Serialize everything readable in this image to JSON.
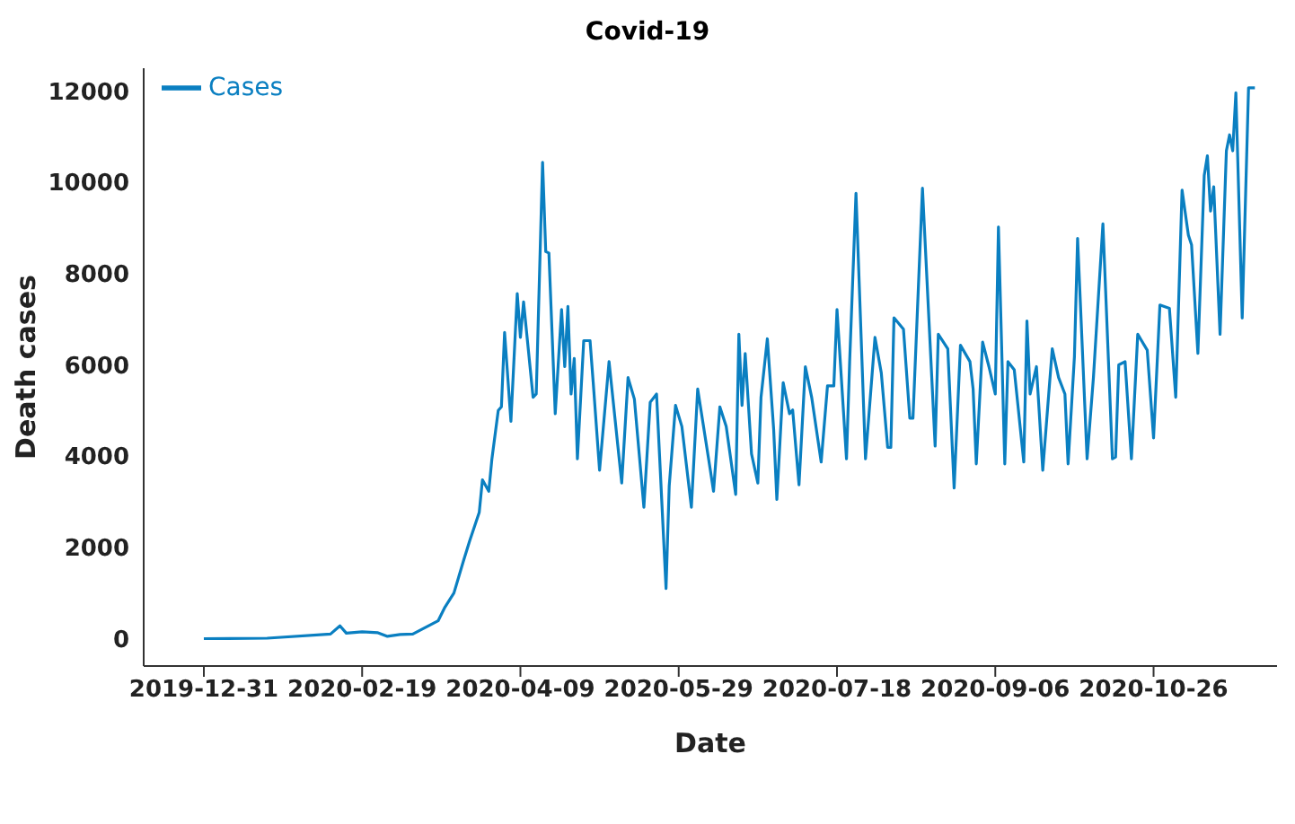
{
  "chart_data": {
    "type": "line",
    "title": "Covid-19",
    "xlabel": "Date",
    "ylabel": "Death cases",
    "x": [
      "2019-12-31",
      "2020-01-20",
      "2020-02-09",
      "2020-02-12",
      "2020-02-14",
      "2020-02-19",
      "2020-02-24",
      "2020-02-27",
      "2020-03-02",
      "2020-03-06",
      "2020-03-14",
      "2020-03-16",
      "2020-03-19",
      "2020-03-22",
      "2020-03-24",
      "2020-03-27",
      "2020-03-28",
      "2020-03-30",
      "2020-03-31",
      "2020-04-02",
      "2020-04-03",
      "2020-04-04",
      "2020-04-06",
      "2020-04-08",
      "2020-04-09",
      "2020-04-10",
      "2020-04-13",
      "2020-04-14",
      "2020-04-16",
      "2020-04-17",
      "2020-04-18",
      "2020-04-20",
      "2020-04-22",
      "2020-04-23",
      "2020-04-24",
      "2020-04-25",
      "2020-04-26",
      "2020-04-27",
      "2020-04-29",
      "2020-05-01",
      "2020-05-02",
      "2020-05-04",
      "2020-05-07",
      "2020-05-11",
      "2020-05-13",
      "2020-05-15",
      "2020-05-18",
      "2020-05-20",
      "2020-05-22",
      "2020-05-25",
      "2020-05-26",
      "2020-05-28",
      "2020-05-30",
      "2020-06-02",
      "2020-06-04",
      "2020-06-08",
      "2020-06-09",
      "2020-06-11",
      "2020-06-13",
      "2020-06-16",
      "2020-06-17",
      "2020-06-18",
      "2020-06-19",
      "2020-06-21",
      "2020-06-23",
      "2020-06-24",
      "2020-06-26",
      "2020-06-28",
      "2020-06-29",
      "2020-07-01",
      "2020-07-03",
      "2020-07-04",
      "2020-07-06",
      "2020-07-08",
      "2020-07-10",
      "2020-07-13",
      "2020-07-15",
      "2020-07-17",
      "2020-07-18",
      "2020-07-21",
      "2020-07-22",
      "2020-07-24",
      "2020-07-27",
      "2020-07-30",
      "2020-08-01",
      "2020-08-03",
      "2020-08-04",
      "2020-08-05",
      "2020-08-08",
      "2020-08-10",
      "2020-08-11",
      "2020-08-14",
      "2020-08-18",
      "2020-08-19",
      "2020-08-22",
      "2020-08-24",
      "2020-08-26",
      "2020-08-29",
      "2020-08-30",
      "2020-08-31",
      "2020-09-02",
      "2020-09-04",
      "2020-09-06",
      "2020-09-07",
      "2020-09-09",
      "2020-09-10",
      "2020-09-12",
      "2020-09-15",
      "2020-09-16",
      "2020-09-17",
      "2020-09-19",
      "2020-09-21",
      "2020-09-24",
      "2020-09-26",
      "2020-09-28",
      "2020-09-29",
      "2020-10-01",
      "2020-10-02",
      "2020-10-05",
      "2020-10-07",
      "2020-10-10",
      "2020-10-13",
      "2020-10-14",
      "2020-10-15",
      "2020-10-17",
      "2020-10-19",
      "2020-10-21",
      "2020-10-24",
      "2020-10-26",
      "2020-10-28",
      "2020-10-31",
      "2020-11-02",
      "2020-11-04",
      "2020-11-06",
      "2020-11-07",
      "2020-11-09",
      "2020-11-11",
      "2020-11-12",
      "2020-11-13",
      "2020-11-14",
      "2020-11-16",
      "2020-11-18",
      "2020-11-19",
      "2020-11-20",
      "2020-11-21",
      "2020-11-23",
      "2020-11-25",
      "2020-11-27"
    ],
    "series": [
      {
        "name": "Cases",
        "color": "#0a7fc1",
        "values": [
          0,
          10,
          100,
          280,
          120,
          150,
          130,
          50,
          90,
          100,
          390,
          670,
          1000,
          1700,
          2150,
          2770,
          3480,
          3230,
          3940,
          5000,
          5080,
          6710,
          4760,
          7560,
          6600,
          7380,
          5290,
          5360,
          10440,
          8480,
          8450,
          4930,
          7210,
          5960,
          7280,
          5360,
          6140,
          3940,
          6530,
          6530,
          5610,
          3690,
          6070,
          3410,
          5720,
          5250,
          2880,
          5180,
          5360,
          1100,
          3340,
          5110,
          4650,
          2880,
          5470,
          3690,
          3230,
          5080,
          4650,
          3160,
          6670,
          5110,
          6250,
          4050,
          3410,
          5290,
          6570,
          4580,
          3050,
          5610,
          4930,
          5010,
          3370,
          5960,
          5290,
          3870,
          5540,
          5540,
          7210,
          3940,
          6070,
          9760,
          3940,
          6600,
          5820,
          4190,
          4190,
          7030,
          6780,
          4830,
          4830,
          9870,
          4220,
          6670,
          6350,
          3300,
          6430,
          6070,
          5470,
          3830,
          6500,
          5960,
          5360,
          9020,
          3830,
          6070,
          5890,
          3870,
          6960,
          5360,
          5960,
          3690,
          6350,
          5720,
          5360,
          3830,
          6180,
          8770,
          3940,
          5720,
          9090,
          3940,
          3980,
          6000,
          6070,
          3940,
          6670,
          6320,
          4400,
          7310,
          7240,
          5290,
          9830,
          8840,
          8630,
          6250,
          10150,
          10580,
          9370,
          9900,
          6670,
          10690,
          11040,
          10690,
          11960,
          7030,
          12070,
          12070
        ]
      }
    ],
    "xlim": [
      "2019-12-12",
      "2020-12-04"
    ],
    "xticks": [
      "2019-12-31",
      "2020-02-19",
      "2020-04-09",
      "2020-05-29",
      "2020-07-18",
      "2020-09-06",
      "2020-10-26"
    ],
    "ylim": [
      -600,
      12500
    ],
    "yticks": [
      0,
      2000,
      4000,
      6000,
      8000,
      10000,
      12000
    ],
    "legend": "top left",
    "grid": false,
    "marker": "none",
    "line_style": "solid"
  }
}
